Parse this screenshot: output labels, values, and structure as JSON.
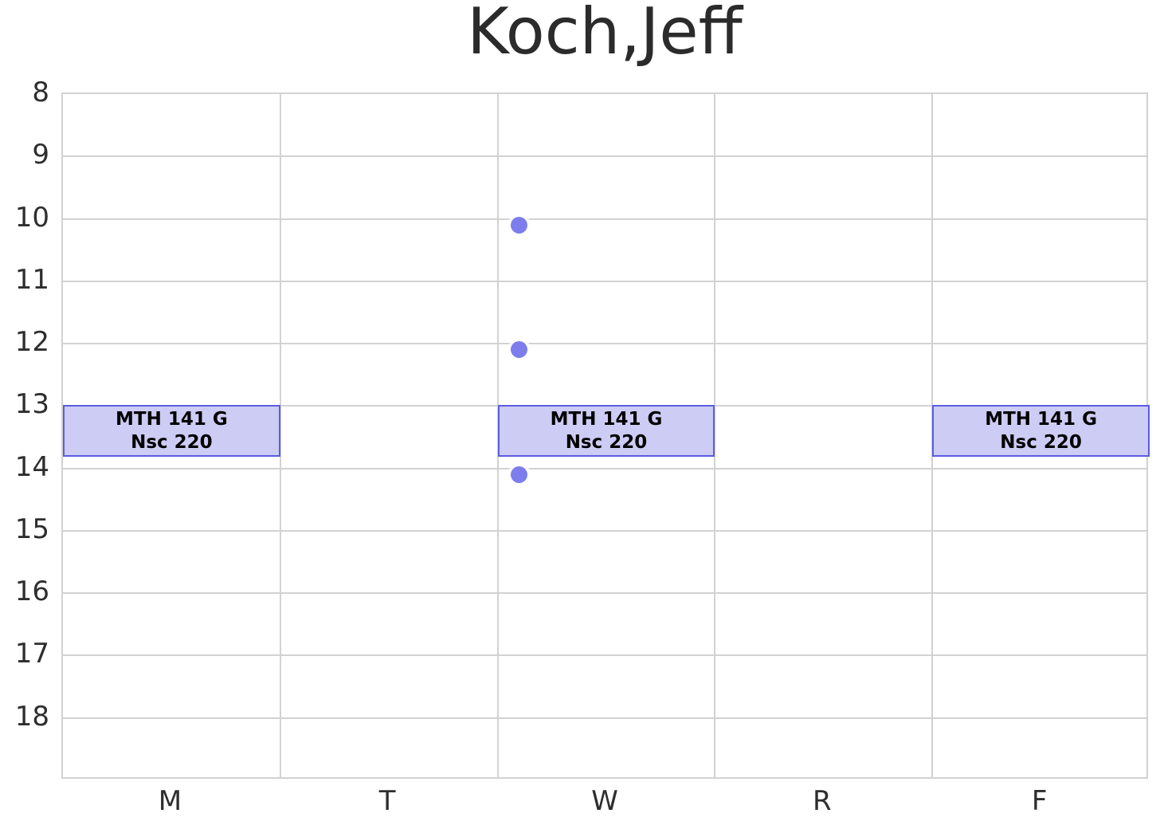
{
  "title": "Koch,Jeff",
  "colors": {
    "background": "#ffffff",
    "grid": "#d2d2d2",
    "title_text": "#2b2b2b",
    "tick_text": "#2e2e2e",
    "event_fill": "#ccccf4",
    "event_border": "#5c5ce0",
    "event_text": "#000000",
    "dot_fill": "#7d7dee"
  },
  "chart_data": {
    "type": "scatter",
    "subtype": "weekly-schedule-timetable",
    "title": "Koch,Jeff",
    "categories": [
      "M",
      "T",
      "W",
      "R",
      "F"
    ],
    "y_ticks": [
      8,
      9,
      10,
      11,
      12,
      13,
      14,
      15,
      16,
      17,
      18
    ],
    "ylim": [
      8,
      19
    ],
    "xlim": [
      -0.5,
      4.5
    ],
    "y_inverted": true,
    "grid": true,
    "legend": "none",
    "xlabel": "",
    "ylabel": "",
    "events": [
      {
        "day": "M",
        "day_index": 0,
        "start_hour": 13.0,
        "end_hour": 13.8,
        "label_line1": "MTH 141 G",
        "label_line2": "Nsc 220"
      },
      {
        "day": "W",
        "day_index": 2,
        "start_hour": 13.0,
        "end_hour": 13.8,
        "label_line1": "MTH 141 G",
        "label_line2": "Nsc 220"
      },
      {
        "day": "F",
        "day_index": 4,
        "start_hour": 13.0,
        "end_hour": 13.8,
        "label_line1": "MTH 141 G",
        "label_line2": "Nsc 220"
      }
    ],
    "points": [
      {
        "day": "W",
        "x": 1.6,
        "hour": 10.1
      },
      {
        "day": "W",
        "x": 1.6,
        "hour": 12.1
      },
      {
        "day": "W",
        "x": 1.6,
        "hour": 14.1
      }
    ]
  }
}
